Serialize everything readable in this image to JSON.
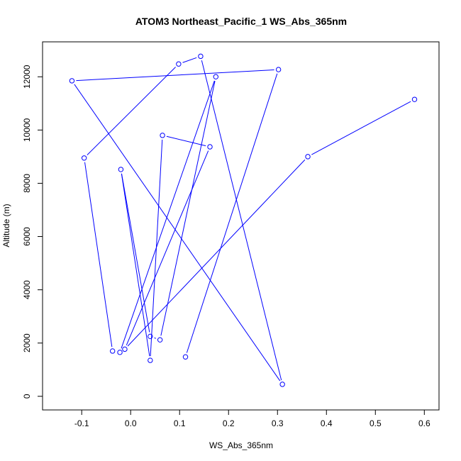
{
  "chart_data": {
    "type": "line",
    "title": "ATOM3 Northeast_Pacific_1 WS_Abs_365nm",
    "xlabel": "WS_Abs_365nm",
    "ylabel": "Altitude (m)",
    "xlim": [
      -0.15,
      0.6
    ],
    "ylim": [
      0,
      12800
    ],
    "xticks": [
      -0.1,
      0.0,
      0.1,
      0.2,
      0.3,
      0.4,
      0.5,
      0.6
    ],
    "xtick_labels": [
      "-0.1",
      "0.0",
      "0.1",
      "0.2",
      "0.3",
      "0.4",
      "0.5",
      "0.6"
    ],
    "yticks": [
      0,
      2000,
      4000,
      6000,
      8000,
      10000,
      12000
    ],
    "ytick_labels": [
      "0",
      "2000",
      "4000",
      "6000",
      "8000",
      "10000",
      "12000"
    ],
    "grid": false,
    "series": [
      {
        "color": "#0000ff",
        "marker": "open-circle",
        "points": [
          {
            "x": 0.58,
            "y": 11150
          },
          {
            "x": 0.362,
            "y": 9000
          },
          {
            "x": -0.012,
            "y": 1770
          },
          {
            "x": 0.162,
            "y": 9370
          },
          {
            "x": 0.065,
            "y": 9800
          },
          {
            "x": 0.04,
            "y": 1350
          },
          {
            "x": -0.02,
            "y": 8520
          },
          {
            "x": 0.04,
            "y": 2250
          },
          {
            "x": 0.06,
            "y": 2120
          },
          {
            "x": 0.174,
            "y": 12000
          },
          {
            "x": -0.022,
            "y": 1650
          },
          {
            "x": -0.037,
            "y": 1700
          },
          {
            "x": -0.095,
            "y": 8950
          },
          {
            "x": 0.098,
            "y": 12480
          },
          {
            "x": 0.143,
            "y": 12770
          },
          {
            "x": 0.31,
            "y": 450
          },
          {
            "x": -0.12,
            "y": 11850
          },
          {
            "x": 0.302,
            "y": 12270
          },
          {
            "x": 0.112,
            "y": 1480
          }
        ]
      }
    ]
  }
}
